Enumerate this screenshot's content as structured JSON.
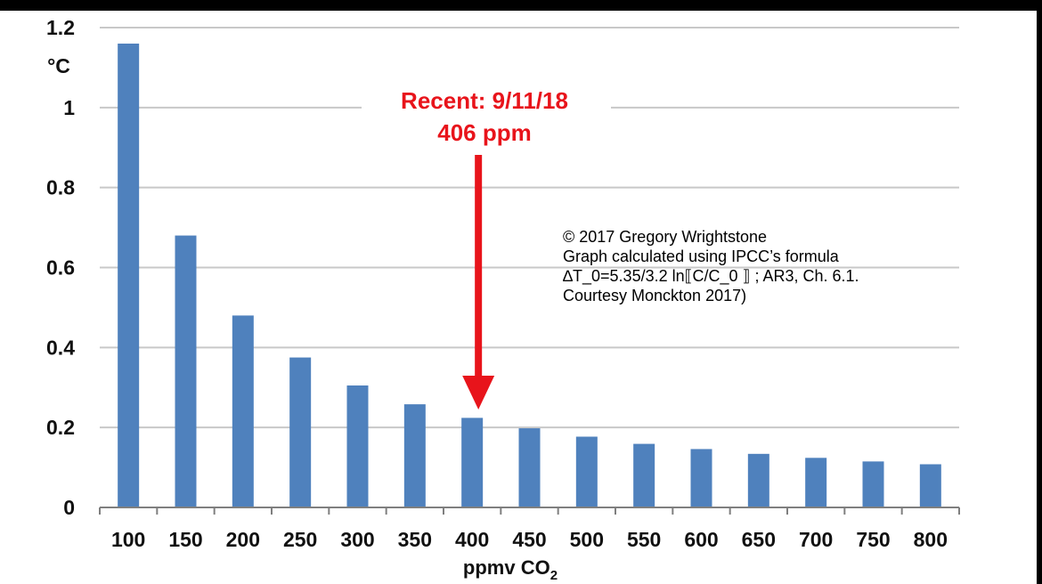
{
  "chart_data": {
    "type": "bar",
    "categories": [
      "100",
      "150",
      "200",
      "250",
      "300",
      "350",
      "400",
      "450",
      "500",
      "550",
      "600",
      "650",
      "700",
      "750",
      "800"
    ],
    "values": [
      1.16,
      0.68,
      0.48,
      0.375,
      0.305,
      0.258,
      0.224,
      0.198,
      0.177,
      0.159,
      0.146,
      0.134,
      0.124,
      0.115,
      0.108
    ],
    "ylim": [
      0,
      1.2
    ],
    "yticks": [
      "0",
      "0.2",
      "0.4",
      "0.6",
      "0.8",
      "1",
      "1.2"
    ],
    "ylabel": "°C",
    "xlabel": "ppmv CO",
    "xlabel_subscript": "2",
    "grid": true,
    "bar_color": "#4f81bd",
    "annotation": {
      "line1": "Recent: 9/11/18",
      "line2": "406 ppm",
      "color": "#e8141b",
      "points_to_category": "400"
    },
    "credit_lines": [
      "© 2017 Gregory Wrightstone",
      "Graph calculated using IPCC’s formula",
      "∆T_0=5.35/3.2  ln⟦C/C_0 ⟧ ; AR3, Ch. 6.1.",
      "Courtesy Monckton 2017)"
    ]
  }
}
